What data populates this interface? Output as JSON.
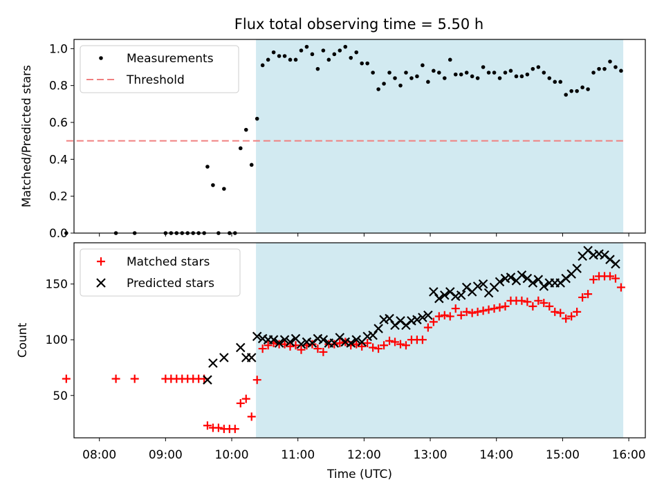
{
  "title": "Flux total observing time = 5.50 h",
  "colors": {
    "shade": "#add8e6",
    "threshold": "#f08080",
    "matched": "#ff0000",
    "predicted": "#000000",
    "measurement": "#000000"
  },
  "chart_data": [
    {
      "type": "scatter",
      "ylabel": "Matched/Predicted stars",
      "ylim": [
        0.0,
        1.05
      ],
      "xlim": [
        "07:37",
        "16:15"
      ],
      "yticks": [
        "0.0",
        "0.2",
        "0.4",
        "0.6",
        "0.8",
        "1.0"
      ],
      "shaded_interval": [
        "10:22",
        "15:55"
      ],
      "legend_placement": "upper-left",
      "series": [
        {
          "name": "Measurements",
          "marker": "dot",
          "points": [
            [
              "07:30",
              0.0
            ],
            [
              "08:15",
              0.0
            ],
            [
              "08:32",
              0.0
            ],
            [
              "09:00",
              0.0
            ],
            [
              "09:05",
              0.0
            ],
            [
              "09:10",
              0.0
            ],
            [
              "09:15",
              0.0
            ],
            [
              "09:20",
              0.0
            ],
            [
              "09:25",
              0.0
            ],
            [
              "09:30",
              0.0
            ],
            [
              "09:35",
              0.0
            ],
            [
              "09:38",
              0.36
            ],
            [
              "09:43",
              0.26
            ],
            [
              "09:48",
              0.0
            ],
            [
              "09:53",
              0.24
            ],
            [
              "09:58",
              0.0
            ],
            [
              "10:03",
              0.0
            ],
            [
              "10:08",
              0.46
            ],
            [
              "10:13",
              0.56
            ],
            [
              "10:18",
              0.37
            ],
            [
              "10:23",
              0.62
            ],
            [
              "10:28",
              0.91
            ],
            [
              "10:33",
              0.94
            ],
            [
              "10:38",
              0.98
            ],
            [
              "10:43",
              0.96
            ],
            [
              "10:48",
              0.96
            ],
            [
              "10:53",
              0.94
            ],
            [
              "10:58",
              0.94
            ],
            [
              "11:03",
              0.99
            ],
            [
              "11:08",
              1.01
            ],
            [
              "11:13",
              0.97
            ],
            [
              "11:18",
              0.89
            ],
            [
              "11:23",
              0.99
            ],
            [
              "11:28",
              0.94
            ],
            [
              "11:33",
              0.97
            ],
            [
              "11:38",
              0.99
            ],
            [
              "11:43",
              1.01
            ],
            [
              "11:48",
              0.95
            ],
            [
              "11:53",
              0.98
            ],
            [
              "11:58",
              0.92
            ],
            [
              "12:03",
              0.92
            ],
            [
              "12:08",
              0.87
            ],
            [
              "12:13",
              0.78
            ],
            [
              "12:18",
              0.81
            ],
            [
              "12:23",
              0.87
            ],
            [
              "12:28",
              0.84
            ],
            [
              "12:33",
              0.8
            ],
            [
              "12:38",
              0.87
            ],
            [
              "12:43",
              0.84
            ],
            [
              "12:48",
              0.85
            ],
            [
              "12:53",
              0.91
            ],
            [
              "12:58",
              0.82
            ],
            [
              "13:03",
              0.88
            ],
            [
              "13:08",
              0.87
            ],
            [
              "13:13",
              0.84
            ],
            [
              "13:18",
              0.94
            ],
            [
              "13:23",
              0.86
            ],
            [
              "13:28",
              0.86
            ],
            [
              "13:33",
              0.87
            ],
            [
              "13:38",
              0.85
            ],
            [
              "13:43",
              0.84
            ],
            [
              "13:48",
              0.9
            ],
            [
              "13:53",
              0.87
            ],
            [
              "13:58",
              0.87
            ],
            [
              "14:03",
              0.84
            ],
            [
              "14:08",
              0.87
            ],
            [
              "14:13",
              0.88
            ],
            [
              "14:18",
              0.85
            ],
            [
              "14:23",
              0.85
            ],
            [
              "14:28",
              0.86
            ],
            [
              "14:33",
              0.89
            ],
            [
              "14:38",
              0.9
            ],
            [
              "14:43",
              0.87
            ],
            [
              "14:48",
              0.84
            ],
            [
              "14:53",
              0.82
            ],
            [
              "14:58",
              0.82
            ],
            [
              "15:03",
              0.75
            ],
            [
              "15:08",
              0.77
            ],
            [
              "15:13",
              0.77
            ],
            [
              "15:18",
              0.79
            ],
            [
              "15:23",
              0.78
            ],
            [
              "15:28",
              0.87
            ],
            [
              "15:33",
              0.89
            ],
            [
              "15:38",
              0.89
            ],
            [
              "15:43",
              0.93
            ],
            [
              "15:48",
              0.9
            ],
            [
              "15:53",
              0.88
            ]
          ]
        },
        {
          "name": "Threshold",
          "marker": "dashed-line",
          "points": [
            [
              "07:30",
              0.5
            ],
            [
              "15:55",
              0.5
            ]
          ]
        }
      ]
    },
    {
      "type": "scatter",
      "xlabel": "Time (UTC)",
      "ylabel": "Count",
      "ylim": [
        12,
        187
      ],
      "xlim": [
        "07:37",
        "16:15"
      ],
      "yticks": [
        "50",
        "100",
        "150"
      ],
      "xticks": [
        "08:00",
        "09:00",
        "10:00",
        "11:00",
        "12:00",
        "13:00",
        "14:00",
        "15:00",
        "16:00"
      ],
      "shaded_interval": [
        "10:22",
        "15:55"
      ],
      "legend_placement": "upper-left",
      "series": [
        {
          "name": "Matched stars",
          "marker": "plus",
          "points": [
            [
              "07:30",
              65
            ],
            [
              "08:15",
              65
            ],
            [
              "08:32",
              65
            ],
            [
              "09:00",
              65
            ],
            [
              "09:05",
              65
            ],
            [
              "09:10",
              65
            ],
            [
              "09:15",
              65
            ],
            [
              "09:20",
              65
            ],
            [
              "09:25",
              65
            ],
            [
              "09:30",
              65
            ],
            [
              "09:35",
              65
            ],
            [
              "09:38",
              23
            ],
            [
              "09:43",
              21
            ],
            [
              "09:48",
              21
            ],
            [
              "09:53",
              20
            ],
            [
              "09:58",
              20
            ],
            [
              "10:03",
              20
            ],
            [
              "10:08",
              43
            ],
            [
              "10:13",
              47
            ],
            [
              "10:18",
              31
            ],
            [
              "10:23",
              64
            ],
            [
              "10:28",
              92
            ],
            [
              "10:33",
              95
            ],
            [
              "10:38",
              97
            ],
            [
              "10:43",
              96
            ],
            [
              "10:48",
              96
            ],
            [
              "10:53",
              94
            ],
            [
              "10:58",
              95
            ],
            [
              "11:03",
              91
            ],
            [
              "11:08",
              95
            ],
            [
              "11:13",
              96
            ],
            [
              "11:18",
              92
            ],
            [
              "11:23",
              89
            ],
            [
              "11:28",
              96
            ],
            [
              "11:33",
              96
            ],
            [
              "11:38",
              97
            ],
            [
              "11:43",
              98
            ],
            [
              "11:48",
              95
            ],
            [
              "11:53",
              96
            ],
            [
              "11:58",
              94
            ],
            [
              "12:03",
              97
            ],
            [
              "12:08",
              93
            ],
            [
              "12:13",
              92
            ],
            [
              "12:18",
              95
            ],
            [
              "12:23",
              99
            ],
            [
              "12:28",
              98
            ],
            [
              "12:33",
              96
            ],
            [
              "12:38",
              95
            ],
            [
              "12:43",
              100
            ],
            [
              "12:48",
              100
            ],
            [
              "12:53",
              100
            ],
            [
              "12:58",
              111
            ],
            [
              "13:03",
              116
            ],
            [
              "13:08",
              121
            ],
            [
              "13:13",
              122
            ],
            [
              "13:18",
              121
            ],
            [
              "13:23",
              128
            ],
            [
              "13:28",
              122
            ],
            [
              "13:33",
              125
            ],
            [
              "13:38",
              124
            ],
            [
              "13:43",
              125
            ],
            [
              "13:48",
              126
            ],
            [
              "13:53",
              127
            ],
            [
              "13:58",
              128
            ],
            [
              "14:03",
              129
            ],
            [
              "14:08",
              130
            ],
            [
              "14:13",
              135
            ],
            [
              "14:18",
              135
            ],
            [
              "14:23",
              135
            ],
            [
              "14:28",
              134
            ],
            [
              "14:33",
              130
            ],
            [
              "14:38",
              135
            ],
            [
              "14:43",
              133
            ],
            [
              "14:48",
              130
            ],
            [
              "14:53",
              125
            ],
            [
              "14:58",
              124
            ],
            [
              "15:03",
              119
            ],
            [
              "15:08",
              121
            ],
            [
              "15:13",
              125
            ],
            [
              "15:18",
              138
            ],
            [
              "15:23",
              141
            ],
            [
              "15:28",
              154
            ],
            [
              "15:33",
              157
            ],
            [
              "15:38",
              157
            ],
            [
              "15:43",
              157
            ],
            [
              "15:48",
              155
            ],
            [
              "15:53",
              147
            ]
          ]
        },
        {
          "name": "Predicted stars",
          "marker": "x",
          "points": [
            [
              "09:38",
              64
            ],
            [
              "09:43",
              79
            ],
            [
              "09:53",
              84
            ],
            [
              "10:08",
              93
            ],
            [
              "10:13",
              84
            ],
            [
              "10:18",
              84
            ],
            [
              "10:23",
              103
            ],
            [
              "10:28",
              101
            ],
            [
              "10:33",
              100
            ],
            [
              "10:38",
              100
            ],
            [
              "10:43",
              97
            ],
            [
              "10:48",
              100
            ],
            [
              "10:53",
              98
            ],
            [
              "10:58",
              101
            ],
            [
              "11:03",
              96
            ],
            [
              "11:08",
              98
            ],
            [
              "11:13",
              97
            ],
            [
              "11:18",
              101
            ],
            [
              "11:23",
              100
            ],
            [
              "11:28",
              97
            ],
            [
              "11:33",
              97
            ],
            [
              "11:38",
              102
            ],
            [
              "11:43",
              98
            ],
            [
              "11:48",
              97
            ],
            [
              "11:53",
              100
            ],
            [
              "11:58",
              98
            ],
            [
              "12:03",
              103
            ],
            [
              "12:08",
              104
            ],
            [
              "12:13",
              110
            ],
            [
              "12:18",
              118
            ],
            [
              "12:23",
              119
            ],
            [
              "12:28",
              113
            ],
            [
              "12:33",
              117
            ],
            [
              "12:38",
              113
            ],
            [
              "12:43",
              117
            ],
            [
              "12:48",
              118
            ],
            [
              "12:53",
              120
            ],
            [
              "12:58",
              122
            ],
            [
              "13:03",
              143
            ],
            [
              "13:08",
              137
            ],
            [
              "13:13",
              140
            ],
            [
              "13:18",
              143
            ],
            [
              "13:23",
              139
            ],
            [
              "13:28",
              140
            ],
            [
              "13:33",
              147
            ],
            [
              "13:38",
              143
            ],
            [
              "13:43",
              148
            ],
            [
              "13:48",
              150
            ],
            [
              "13:53",
              142
            ],
            [
              "13:58",
              147
            ],
            [
              "14:03",
              152
            ],
            [
              "14:08",
              155
            ],
            [
              "14:13",
              156
            ],
            [
              "14:18",
              153
            ],
            [
              "14:23",
              158
            ],
            [
              "14:28",
              155
            ],
            [
              "14:33",
              151
            ],
            [
              "14:38",
              154
            ],
            [
              "14:43",
              148
            ],
            [
              "14:48",
              151
            ],
            [
              "14:53",
              151
            ],
            [
              "14:58",
              151
            ],
            [
              "15:03",
              155
            ],
            [
              "15:08",
              159
            ],
            [
              "15:13",
              164
            ],
            [
              "15:18",
              175
            ],
            [
              "15:23",
              180
            ],
            [
              "15:28",
              176
            ],
            [
              "15:33",
              177
            ],
            [
              "15:38",
              176
            ],
            [
              "15:43",
              172
            ],
            [
              "15:48",
              168
            ]
          ]
        }
      ]
    }
  ]
}
